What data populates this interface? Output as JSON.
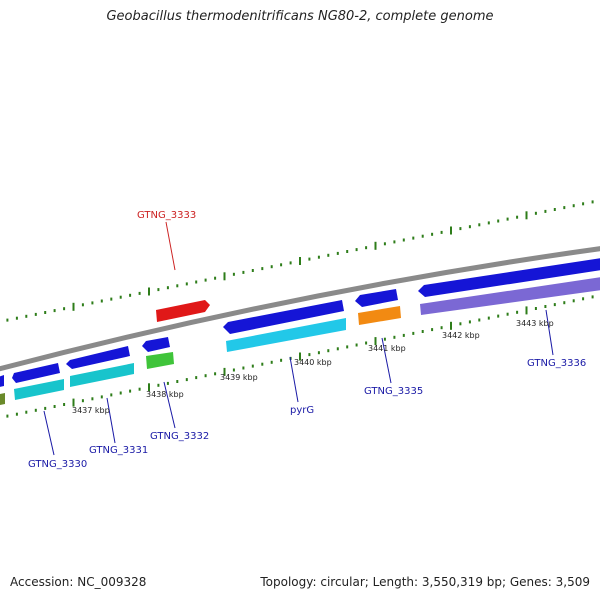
{
  "title": "Geobacillus thermodenitrificans NG80-2, complete genome",
  "footer": {
    "accession": "Accession: NC_009328",
    "stats": "Topology: circular; Length: 3,550,319 bp; Genes: 3,509"
  },
  "colors": {
    "backbone": "#8a8a8a",
    "tick": "#2e7d1a",
    "label_blue": "#1a1aa6",
    "label_red": "#cc2222"
  },
  "scale_labels": [
    "3437 kbp",
    "3438 kbp",
    "3439 kbp",
    "3440 kbp",
    "3441 kbp",
    "3442 kbp",
    "3443 kbp"
  ],
  "genes": [
    {
      "name": "GTNG_3330",
      "color_outer": "#1515d6",
      "color_inner": "#18c4cc",
      "highlight": false
    },
    {
      "name": "GTNG_3331",
      "color_outer": "#1515d6",
      "color_inner": "#18c4cc",
      "highlight": false
    },
    {
      "name": "GTNG_3332",
      "color_outer": "#1515d6",
      "color_inner": "#3fc43a",
      "highlight": false
    },
    {
      "name": "GTNG_3333",
      "color_outer": "#e01818",
      "color_inner": "",
      "highlight": true
    },
    {
      "name": "pyrG",
      "color_outer": "#1515d6",
      "color_inner": "#22c8e8",
      "highlight": false
    },
    {
      "name": "GTNG_3335",
      "color_outer": "#1515d6",
      "color_inner": "#f28a12",
      "highlight": false
    },
    {
      "name": "GTNG_3336",
      "color_outer": "#1515d6",
      "color_inner": "#7b68d4",
      "highlight": false
    }
  ]
}
